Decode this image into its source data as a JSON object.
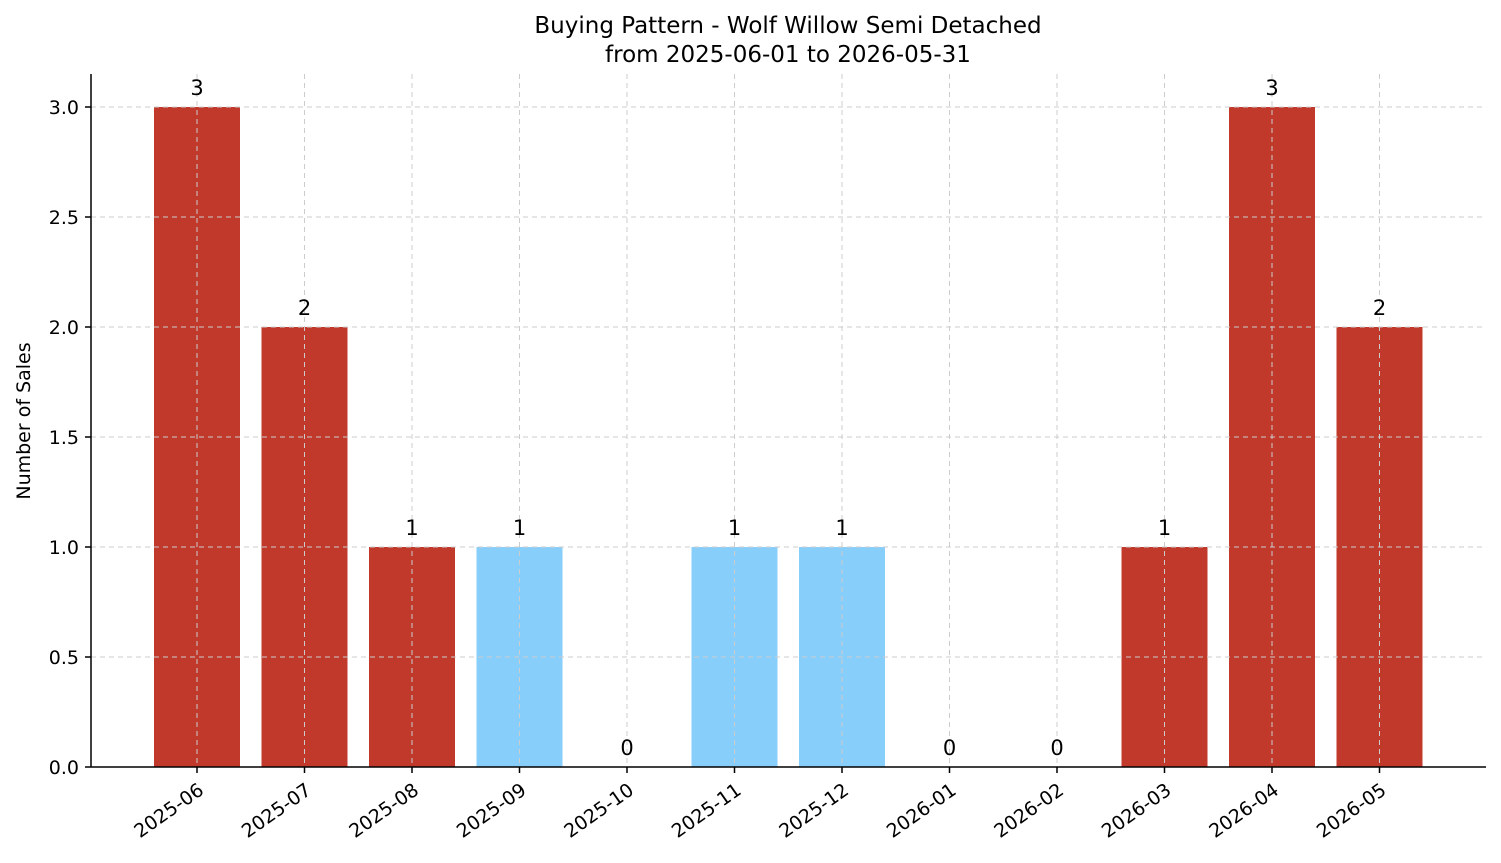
{
  "chart_data": {
    "type": "bar",
    "title": "Buying Pattern - Wolf Willow Semi Detached",
    "subtitle": "from 2025-06-01 to 2026-05-31",
    "xlabel": "",
    "ylabel": "Number of Sales",
    "categories": [
      "2025-06",
      "2025-07",
      "2025-08",
      "2025-09",
      "2025-10",
      "2025-11",
      "2025-12",
      "2026-01",
      "2026-02",
      "2026-03",
      "2026-04",
      "2026-05"
    ],
    "values": [
      3,
      2,
      1,
      1,
      0,
      1,
      1,
      0,
      0,
      1,
      3,
      2
    ],
    "bar_colors": [
      "#c0392b",
      "#c0392b",
      "#c0392b",
      "#87cefa",
      "#87cefa",
      "#87cefa",
      "#87cefa",
      "#87cefa",
      "#87cefa",
      "#c0392b",
      "#c0392b",
      "#c0392b"
    ],
    "data_labels": [
      "3",
      "2",
      "1",
      "1",
      "0",
      "1",
      "1",
      "0",
      "0",
      "1",
      "3",
      "2"
    ],
    "yticks": [
      0.0,
      0.5,
      1.0,
      1.5,
      2.0,
      2.5,
      3.0
    ],
    "ytick_labels": [
      "0.0",
      "0.5",
      "1.0",
      "1.5",
      "2.0",
      "2.5",
      "3.0"
    ],
    "ylim": [
      0,
      3.15
    ],
    "grid": true,
    "legend": "none"
  }
}
